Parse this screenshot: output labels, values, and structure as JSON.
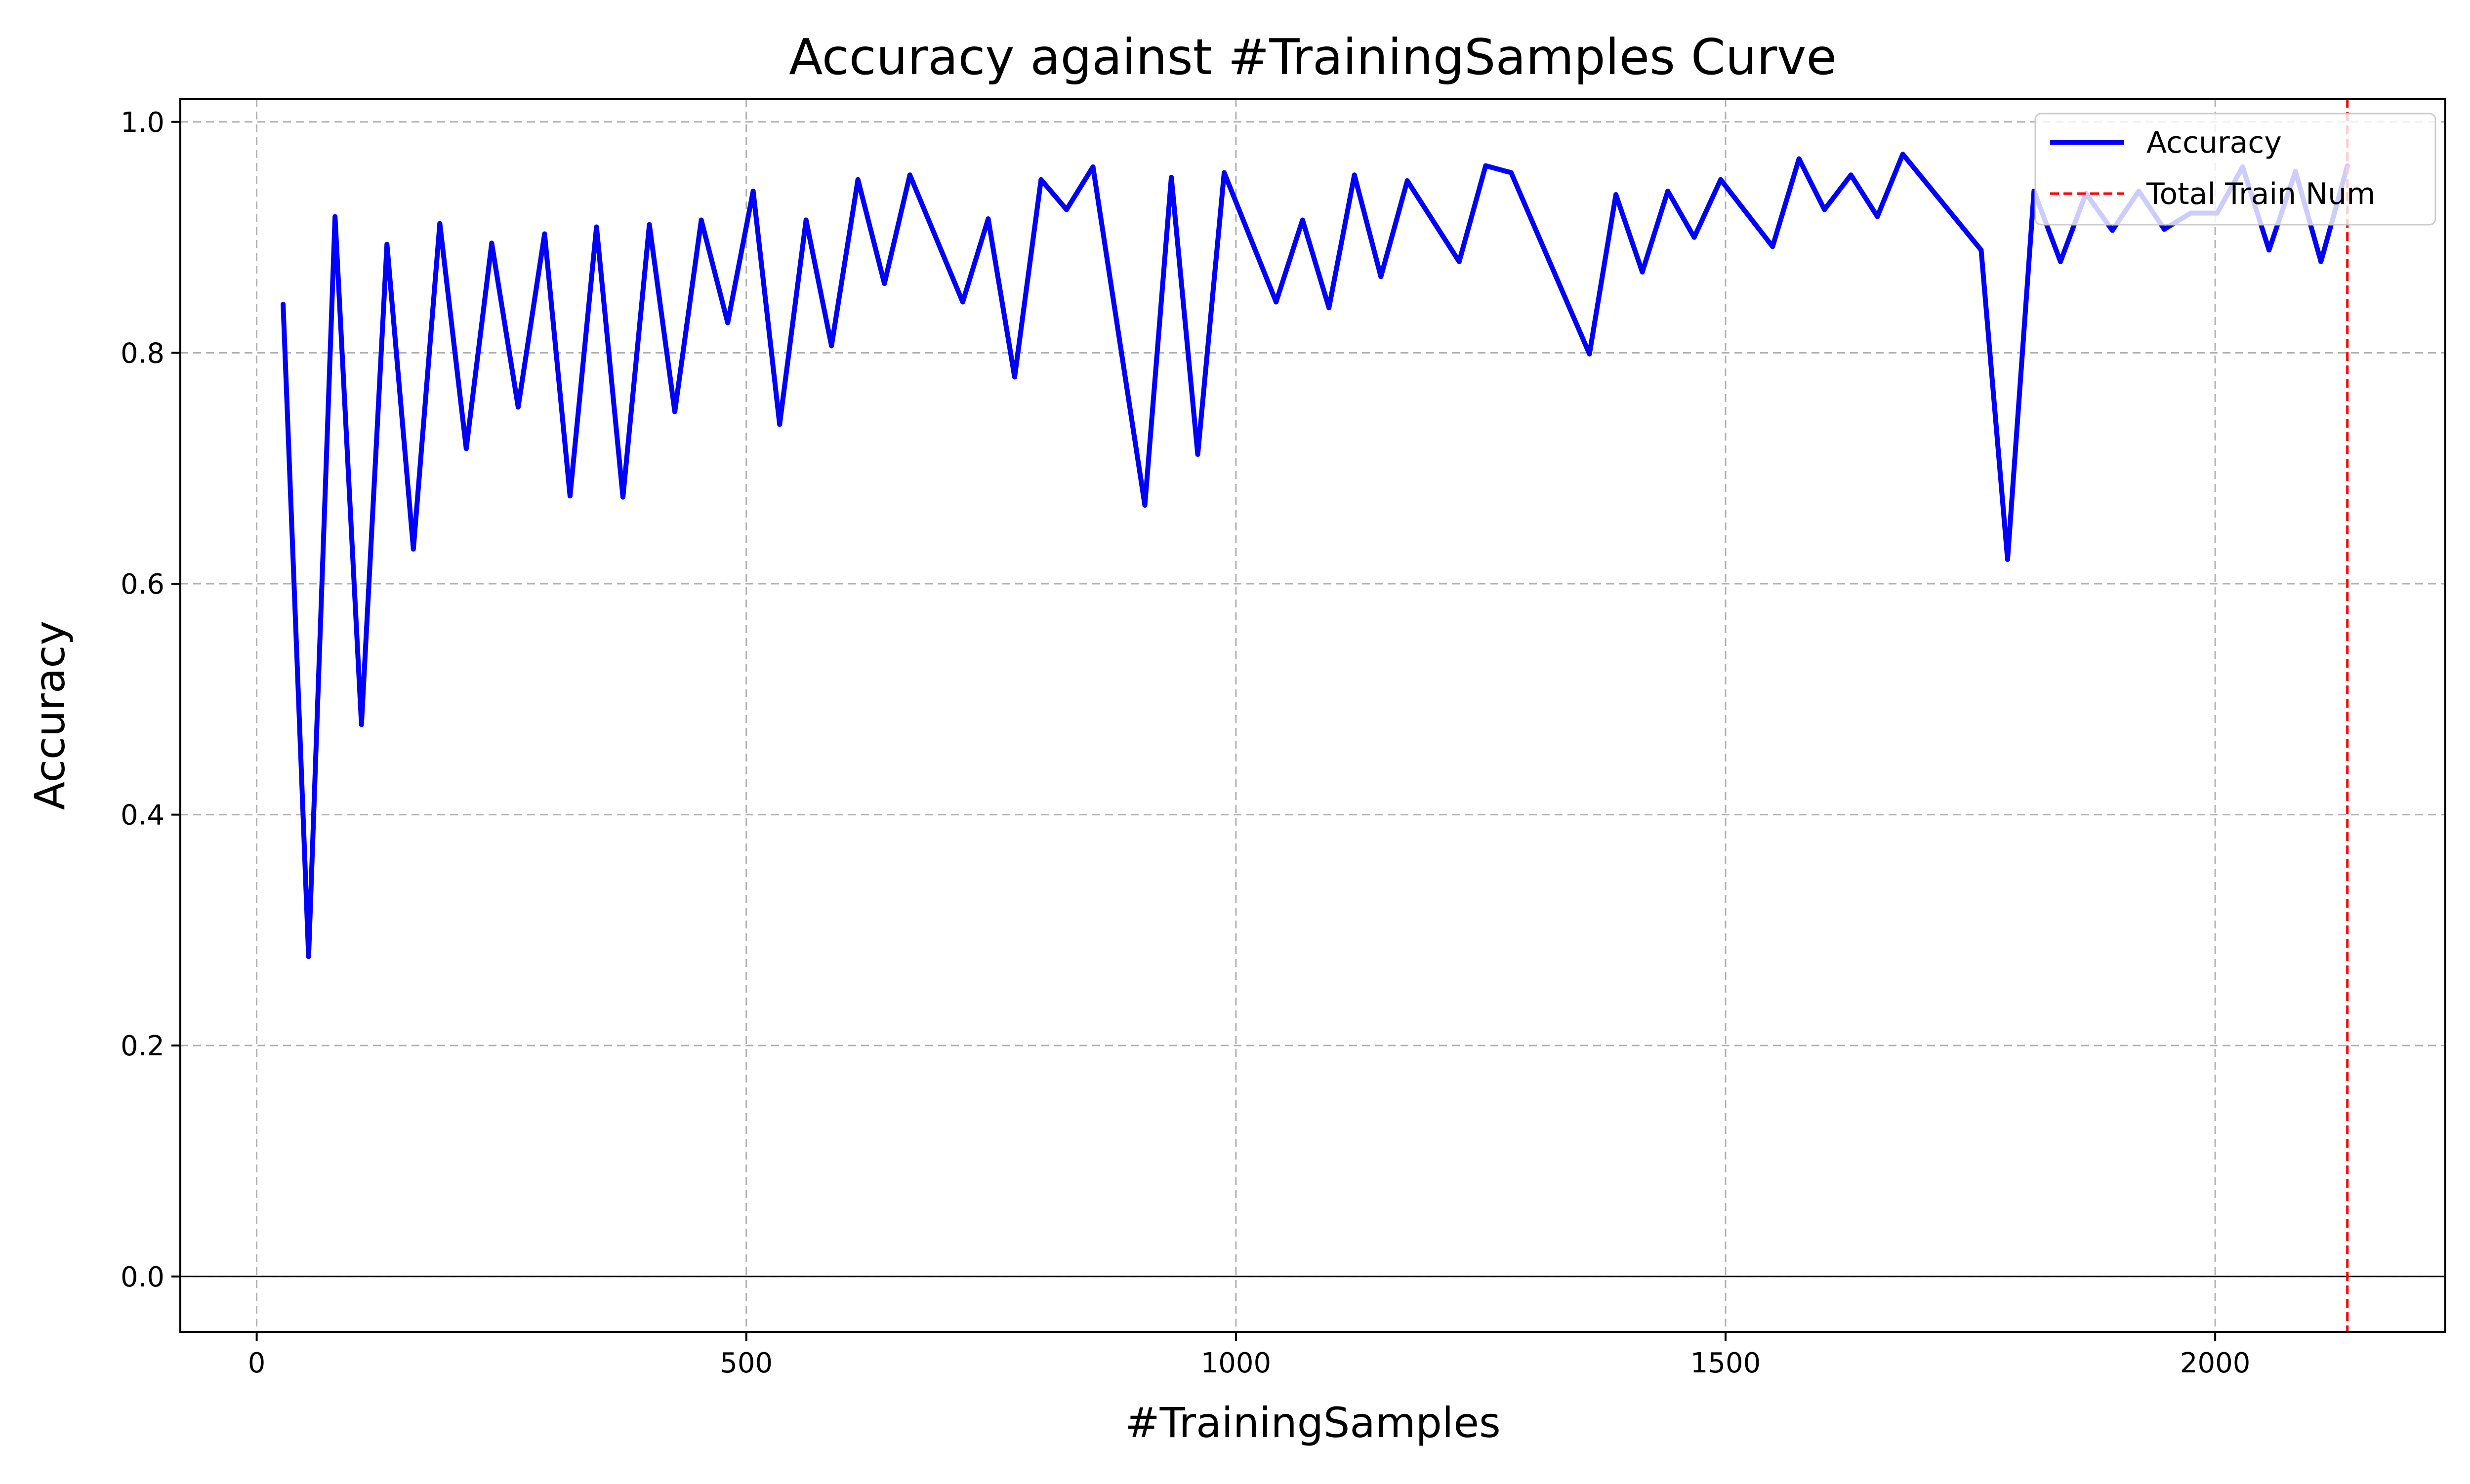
{
  "chart_data": {
    "type": "line",
    "title": "Accuracy against #TrainingSamples Curve",
    "xlabel": "#TrainingSamples",
    "ylabel": "Accuracy",
    "xlim": [
      -78,
      2235
    ],
    "ylim": [
      -0.048,
      1.02
    ],
    "xticks": [
      0,
      500,
      1000,
      1500,
      2000
    ],
    "yticks": [
      0.0,
      0.2,
      0.4,
      0.6,
      0.8,
      1.0
    ],
    "xtick_labels": [
      "0",
      "500",
      "1000",
      "1500",
      "2000"
    ],
    "ytick_labels": [
      "0.0",
      "0.2",
      "0.4",
      "0.6",
      "0.8",
      "1.0"
    ],
    "grid": true,
    "legend_position": "upper right",
    "zero_line": 0.0,
    "series": [
      {
        "name": "Accuracy",
        "color": "#0000ff",
        "style": "solid",
        "x": [
          27,
          53,
          80,
          107,
          133,
          160,
          187,
          214,
          240,
          267,
          294,
          320,
          347,
          374,
          401,
          427,
          454,
          481,
          507,
          534,
          561,
          587,
          614,
          641,
          667,
          721,
          747,
          774,
          801,
          827,
          854,
          907,
          934,
          961,
          988,
          1041,
          1068,
          1095,
          1121,
          1148,
          1175,
          1228,
          1255,
          1281,
          1361,
          1388,
          1415,
          1441,
          1468,
          1495,
          1548,
          1575,
          1601,
          1628,
          1655,
          1681,
          1761,
          1788,
          1815,
          1842,
          1868,
          1895,
          1922,
          1948,
          1975,
          2002,
          2028,
          2055,
          2082,
          2108,
          2135
        ],
        "y": [
          0.842,
          0.277,
          0.918,
          0.478,
          0.894,
          0.63,
          0.912,
          0.717,
          0.895,
          0.753,
          0.903,
          0.676,
          0.909,
          0.675,
          0.911,
          0.749,
          0.915,
          0.826,
          0.94,
          0.738,
          0.915,
          0.806,
          0.95,
          0.86,
          0.954,
          0.844,
          0.916,
          0.779,
          0.95,
          0.924,
          0.961,
          0.668,
          0.952,
          0.712,
          0.956,
          0.844,
          0.915,
          0.839,
          0.954,
          0.866,
          0.949,
          0.879,
          0.962,
          0.956,
          0.799,
          0.937,
          0.87,
          0.94,
          0.9,
          0.95,
          0.892,
          0.968,
          0.924,
          0.954,
          0.918,
          0.972,
          0.889,
          0.621,
          0.94,
          0.879,
          0.938,
          0.906,
          0.94,
          0.907,
          0.921,
          0.921,
          0.961,
          0.889,
          0.957,
          0.879,
          0.962
        ]
      }
    ],
    "vline": {
      "name": "Total Train Num",
      "x": 2135,
      "color": "#ff0000",
      "style": "dashed"
    }
  }
}
